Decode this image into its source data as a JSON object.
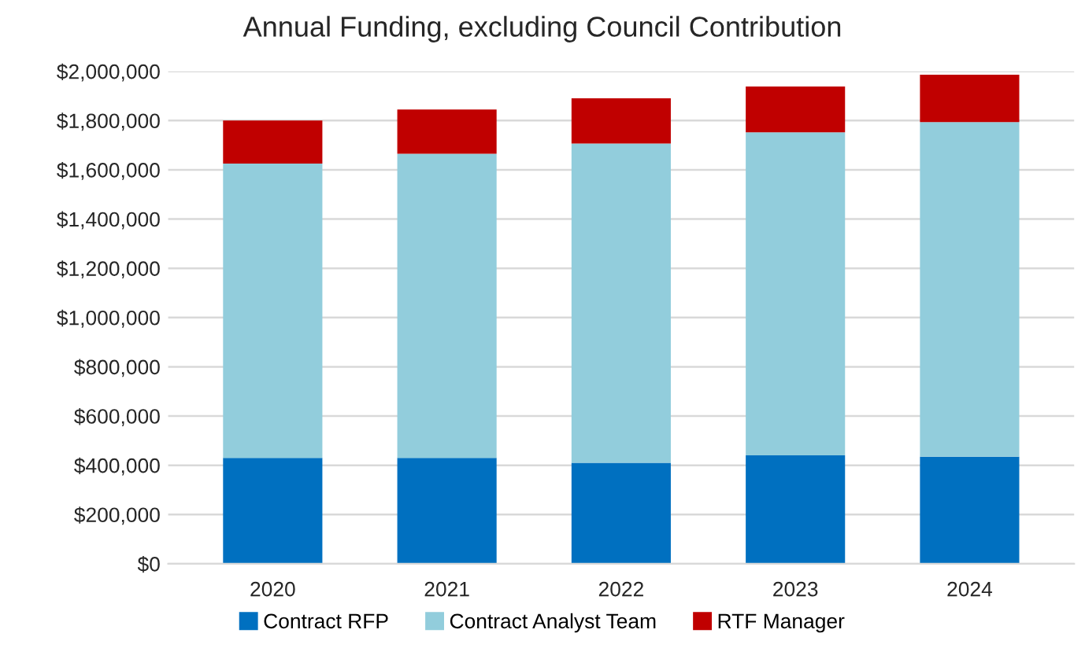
{
  "chart_data": {
    "type": "bar",
    "title": "Annual Funding, excluding Council Contribution",
    "categories": [
      "2020",
      "2021",
      "2022",
      "2023",
      "2024"
    ],
    "stacked": true,
    "series": [
      {
        "name": "Contract RFP",
        "color": "#0070c0",
        "values": [
          430000,
          430000,
          410000,
          440000,
          435000
        ]
      },
      {
        "name": "Contract Analyst Team",
        "color": "#92cddc",
        "values": [
          1195000,
          1235000,
          1297000,
          1312000,
          1359000
        ]
      },
      {
        "name": "RTF Manager",
        "color": "#c00000",
        "values": [
          175000,
          180000,
          183000,
          186000,
          192000
        ]
      }
    ],
    "ylim": [
      0,
      2000000
    ],
    "yticks": [
      {
        "value": 0,
        "label": "$0"
      },
      {
        "value": 200000,
        "label": "$200,000"
      },
      {
        "value": 400000,
        "label": "$400,000"
      },
      {
        "value": 600000,
        "label": "$600,000"
      },
      {
        "value": 800000,
        "label": "$800,000"
      },
      {
        "value": 1000000,
        "label": "$1,000,000"
      },
      {
        "value": 1200000,
        "label": "$1,200,000"
      },
      {
        "value": 1400000,
        "label": "$1,400,000"
      },
      {
        "value": 1600000,
        "label": "$1,600,000"
      },
      {
        "value": 1800000,
        "label": "$1,800,000"
      },
      {
        "value": 2000000,
        "label": "$2,000,000"
      }
    ],
    "grid": "y",
    "legend": "bottom"
  }
}
